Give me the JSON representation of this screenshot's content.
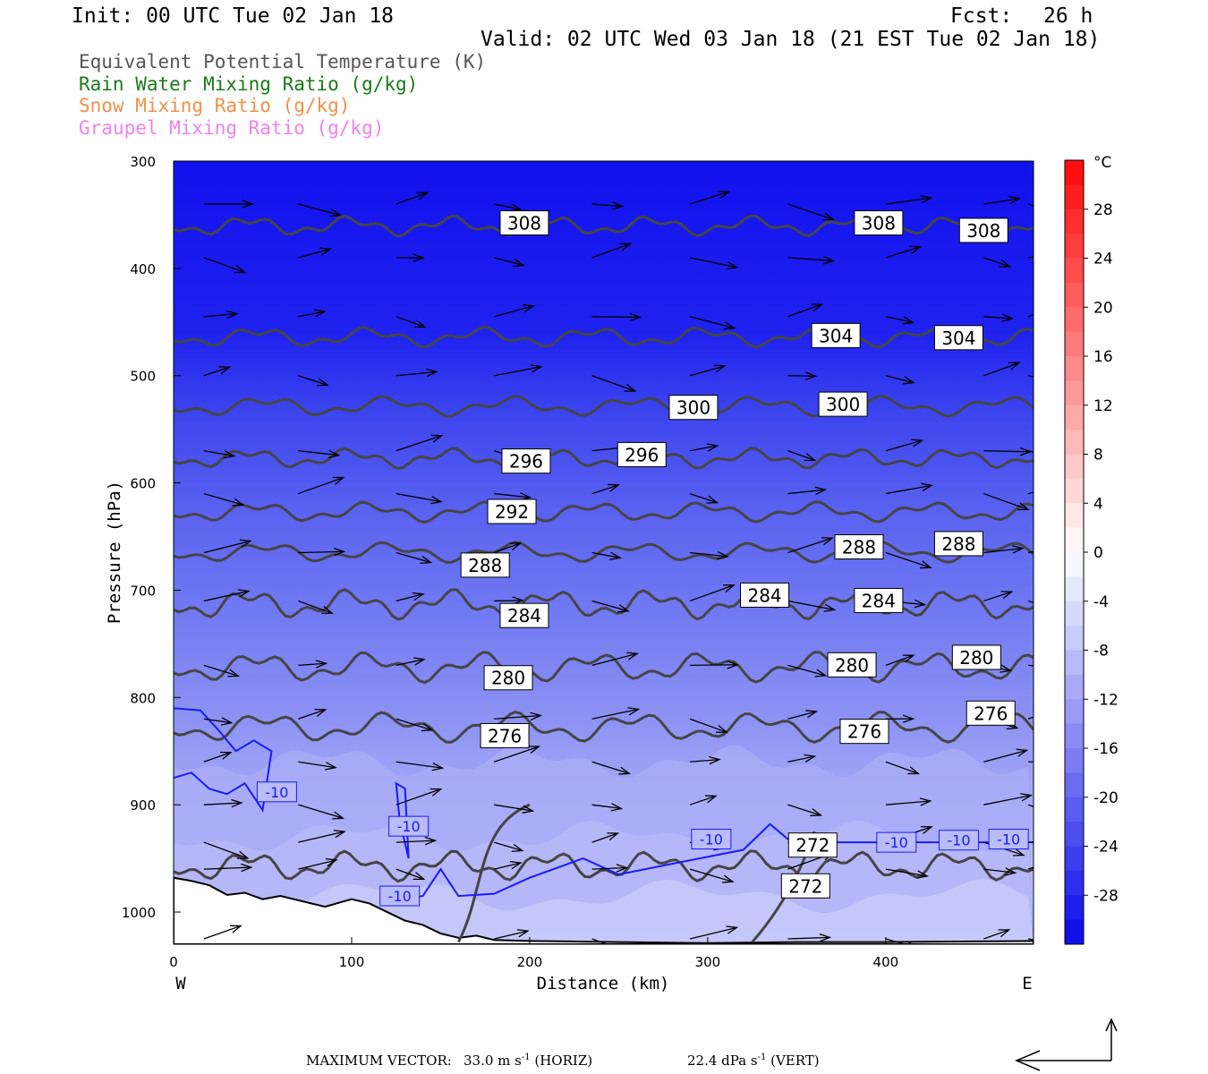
{
  "header": {
    "init": "Init: 00 UTC Tue 02 Jan 18",
    "fcst_label": "Fcst:",
    "fcst_value": "26 h",
    "valid": "Valid: 02 UTC Wed 03 Jan 18 (21 EST Tue 02 Jan 18)"
  },
  "legend": [
    {
      "label": "Equivalent Potential Temperature (K)",
      "color": "#555555"
    },
    {
      "label": "Rain Water Mixing Ratio (g/kg)",
      "color": "#1a7a1a"
    },
    {
      "label": "Snow Mixing Ratio (g/kg)",
      "color": "#f0904a"
    },
    {
      "label": "Graupel Mixing Ratio (g/kg)",
      "color": "#ee82ee"
    }
  ],
  "footer": {
    "max_vector_label": "MAXIMUM VECTOR:",
    "horiz": "33.0 m s",
    "horiz_unit": " (HORIZ)",
    "vert": "22.4 dPa s",
    "vert_unit": " (VERT)",
    "exponent": "-1"
  },
  "chart_data": {
    "type": "cross-section",
    "xlabel": "Distance (km)",
    "ylabel": "Pressure (hPa)",
    "x_ticks": [
      0,
      100,
      200,
      300,
      400
    ],
    "xlim": [
      0,
      483
    ],
    "y_ticks": [
      300,
      400,
      500,
      600,
      700,
      800,
      900,
      1000
    ],
    "ylim": [
      1030,
      300
    ],
    "x_end_labels": {
      "left": "W",
      "right": "E"
    },
    "colorbar": {
      "unit": "°C",
      "ticks": [
        28,
        24,
        20,
        16,
        12,
        8,
        4,
        0,
        -4,
        -8,
        -12,
        -16,
        -20,
        -24,
        -28
      ]
    },
    "theta_e_contours": [
      {
        "value": 308,
        "labels": [
          [
            197,
            358
          ],
          [
            396,
            358
          ],
          [
            455,
            365
          ]
        ]
      },
      {
        "value": 304,
        "labels": [
          [
            372,
            463
          ],
          [
            441,
            465
          ]
        ]
      },
      {
        "value": 300,
        "labels": [
          [
            292,
            530
          ],
          [
            376,
            527
          ]
        ]
      },
      {
        "value": 296,
        "labels": [
          [
            198,
            580
          ],
          [
            263,
            574
          ]
        ]
      },
      {
        "value": 292,
        "labels": [
          [
            190,
            627
          ]
        ]
      },
      {
        "value": 288,
        "labels": [
          [
            175,
            677
          ],
          [
            385,
            660
          ],
          [
            441,
            657
          ]
        ]
      },
      {
        "value": 284,
        "labels": [
          [
            197,
            724
          ],
          [
            332,
            705
          ],
          [
            396,
            710
          ]
        ]
      },
      {
        "value": 280,
        "labels": [
          [
            188,
            782
          ],
          [
            381,
            770
          ],
          [
            451,
            763
          ]
        ]
      },
      {
        "value": 276,
        "labels": [
          [
            186,
            836
          ],
          [
            388,
            832
          ],
          [
            459,
            815
          ]
        ]
      },
      {
        "value": 272,
        "labels": [
          [
            359,
            938
          ],
          [
            355,
            976
          ]
        ]
      }
    ],
    "temperature_contour": {
      "value": -10,
      "labels": [
        [
          58,
          888
        ],
        [
          132,
          920
        ],
        [
          127,
          985
        ],
        [
          302,
          932
        ],
        [
          406,
          935
        ],
        [
          441,
          933
        ],
        [
          469,
          932
        ]
      ]
    }
  }
}
